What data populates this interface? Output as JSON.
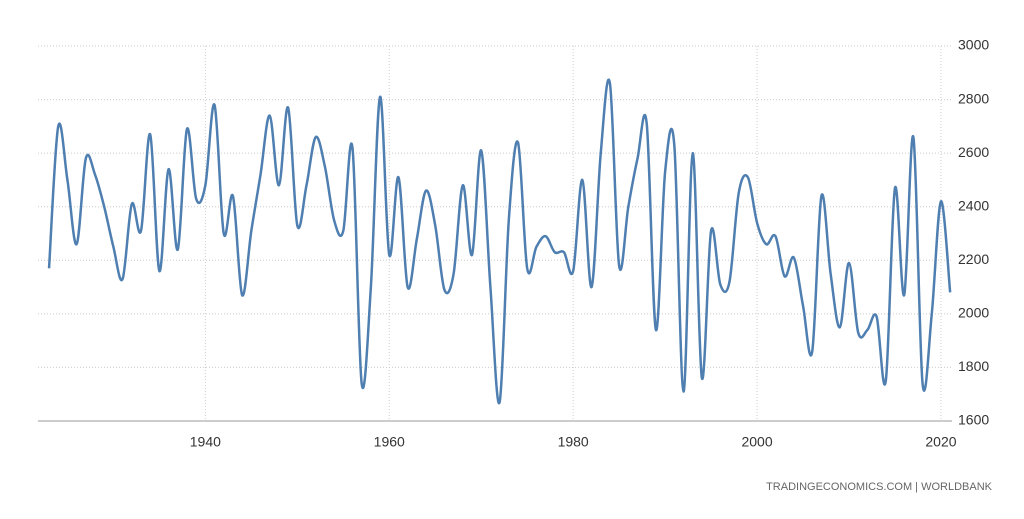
{
  "chart_data": {
    "type": "line",
    "source": "TRADINGECONOMICS.COM | WORLDBANK",
    "x": [
      1923,
      1924,
      1925,
      1926,
      1927,
      1928,
      1929,
      1930,
      1931,
      1932,
      1933,
      1934,
      1935,
      1936,
      1937,
      1938,
      1939,
      1940,
      1941,
      1942,
      1943,
      1944,
      1945,
      1946,
      1947,
      1948,
      1949,
      1950,
      1951,
      1952,
      1953,
      1954,
      1955,
      1956,
      1957,
      1958,
      1959,
      1960,
      1961,
      1962,
      1963,
      1964,
      1965,
      1966,
      1967,
      1968,
      1969,
      1970,
      1971,
      1972,
      1973,
      1974,
      1975,
      1976,
      1977,
      1978,
      1979,
      1980,
      1981,
      1982,
      1983,
      1984,
      1985,
      1986,
      1987,
      1988,
      1989,
      1990,
      1991,
      1992,
      1993,
      1994,
      1995,
      1996,
      1997,
      1998,
      1999,
      2000,
      2001,
      2002,
      2003,
      2004,
      2005,
      2006,
      2007,
      2008,
      2009,
      2010,
      2011,
      2012,
      2013,
      2014,
      2015,
      2016,
      2017,
      2018,
      2019,
      2020,
      2021
    ],
    "series": [
      {
        "color": "#4f7fb0",
        "values": [
          2170,
          2700,
          2500,
          2260,
          2580,
          2520,
          2400,
          2250,
          2130,
          2410,
          2310,
          2670,
          2160,
          2540,
          2240,
          2690,
          2430,
          2480,
          2780,
          2300,
          2440,
          2070,
          2310,
          2520,
          2740,
          2480,
          2770,
          2330,
          2480,
          2660,
          2550,
          2350,
          2310,
          2620,
          1740,
          2100,
          2810,
          2220,
          2510,
          2100,
          2280,
          2460,
          2330,
          2090,
          2150,
          2480,
          2220,
          2610,
          2100,
          1670,
          2350,
          2640,
          2170,
          2250,
          2290,
          2230,
          2230,
          2160,
          2500,
          2100,
          2600,
          2860,
          2180,
          2400,
          2580,
          2710,
          1940,
          2530,
          2630,
          1710,
          2600,
          1760,
          2310,
          2110,
          2120,
          2450,
          2510,
          2340,
          2260,
          2290,
          2140,
          2210,
          2030,
          1860,
          2440,
          2150,
          1950,
          2190,
          1930,
          1940,
          1990,
          1750,
          2470,
          2070,
          2660,
          1740,
          2000,
          2420,
          2080
        ]
      }
    ],
    "xlim": [
      1921.8,
      2021.2
    ],
    "xticks": [
      1940,
      1960,
      1980,
      2000,
      2020
    ],
    "ylim": [
      1600,
      3000
    ],
    "yticks": [
      1600,
      1800,
      2000,
      2200,
      2400,
      2600,
      2800,
      3000
    ],
    "grid": true
  }
}
